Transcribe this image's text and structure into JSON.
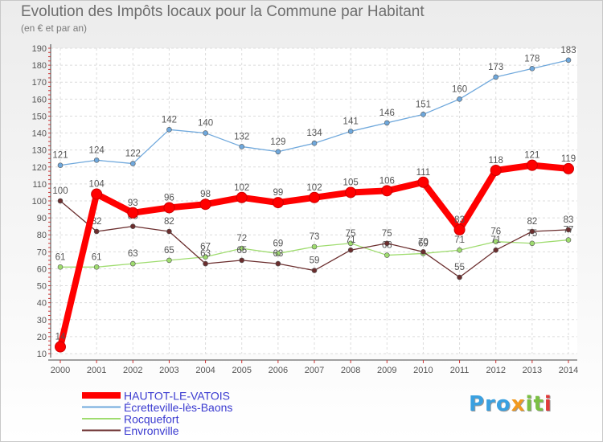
{
  "header": {
    "title": "Evolution des Impôts locaux pour la Commune par Habitant",
    "subtitle": "(en € et par an)"
  },
  "logo": {
    "text": "Proxiti",
    "parts": [
      "Pro",
      "x",
      "it",
      "i"
    ]
  },
  "chart_data": {
    "type": "line",
    "title": "Evolution des Impôts locaux pour la Commune par Habitant",
    "subtitle": "(en € et par an)",
    "xlabel": "",
    "ylabel": "",
    "categories": [
      "2000",
      "2001",
      "2002",
      "2003",
      "2004",
      "2005",
      "2006",
      "2007",
      "2008",
      "2009",
      "2010",
      "2011",
      "2012",
      "2013",
      "2014"
    ],
    "yticks": [
      10,
      20,
      30,
      40,
      50,
      60,
      70,
      80,
      90,
      100,
      110,
      120,
      130,
      140,
      150,
      160,
      170,
      180,
      190
    ],
    "ylim": [
      10,
      190
    ],
    "grid": true,
    "legend_position": "bottom-left",
    "series": [
      {
        "name": "HAUTOT-LE-VATOIS",
        "color": "#ff0000",
        "values": [
          14,
          104,
          93,
          96,
          98,
          102,
          99,
          102,
          105,
          106,
          111,
          83,
          118,
          121,
          119
        ]
      },
      {
        "name": "Écretteville-lès-Baons",
        "color": "#6fa8dc",
        "values": [
          121,
          124,
          122,
          142,
          140,
          132,
          129,
          134,
          141,
          146,
          151,
          160,
          173,
          178,
          183
        ]
      },
      {
        "name": "Rocquefort",
        "color": "#9fdc6f",
        "values": [
          61,
          61,
          63,
          65,
          67,
          72,
          69,
          73,
          75,
          68,
          69,
          71,
          76,
          75,
          77
        ]
      },
      {
        "name": "Envronville",
        "color": "#6b2e2e",
        "values": [
          100,
          82,
          85,
          82,
          63,
          65,
          63,
          59,
          71,
          75,
          70,
          55,
          71,
          82,
          83
        ]
      }
    ]
  }
}
